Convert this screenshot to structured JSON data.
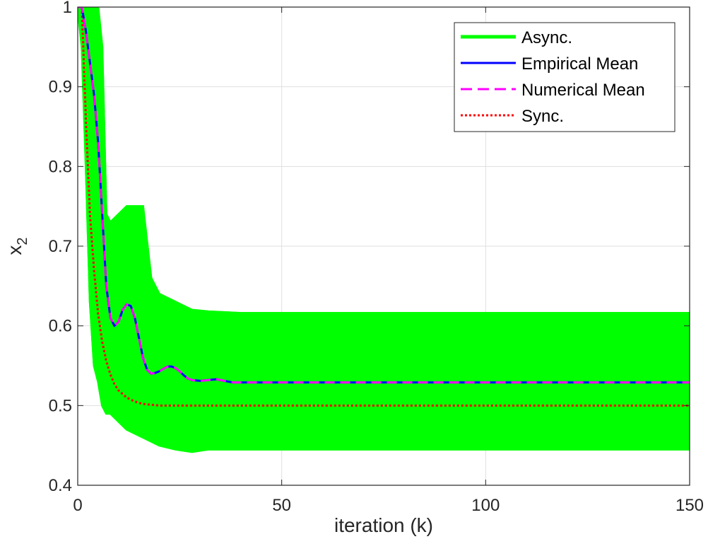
{
  "chart_data": {
    "type": "line",
    "xlabel": "iteration (k)",
    "ylabel": "x",
    "ylabel_subscript": "2",
    "xlim": [
      0,
      150
    ],
    "ylim": [
      0.4,
      1.0
    ],
    "xticks": [
      "0",
      "50",
      "100",
      "150"
    ],
    "yticks": [
      "0.4",
      "0.5",
      "0.6",
      "0.7",
      "0.8",
      "0.9",
      "1"
    ],
    "grid": true,
    "legend_position": "top-right",
    "legend": [
      {
        "label": "Async.",
        "color": "#00ff00",
        "style": "solid"
      },
      {
        "label": "Empirical Mean",
        "color": "#0000ff",
        "style": "solid"
      },
      {
        "label": "Numerical Mean",
        "color": "#ff00ff",
        "style": "dashed"
      },
      {
        "label": "Sync.",
        "color": "#ff0000",
        "style": "dotted"
      }
    ],
    "async_band": {
      "x": [
        0,
        1,
        2,
        3,
        4,
        5,
        6,
        7,
        8,
        10,
        12,
        14,
        16,
        18,
        20,
        24,
        28,
        32,
        40,
        60,
        150
      ],
      "upper": [
        1.0,
        1.0,
        1.0,
        1.0,
        1.0,
        1.0,
        0.95,
        0.74,
        0.73,
        0.74,
        0.75,
        0.75,
        0.75,
        0.66,
        0.64,
        0.63,
        0.62,
        0.618,
        0.616,
        0.616,
        0.616
      ],
      "lower": [
        1.0,
        0.95,
        0.8,
        0.63,
        0.55,
        0.53,
        0.5,
        0.49,
        0.49,
        0.48,
        0.47,
        0.465,
        0.46,
        0.455,
        0.45,
        0.445,
        0.442,
        0.445,
        0.445,
        0.445,
        0.445
      ]
    },
    "series": [
      {
        "name": "Empirical Mean",
        "color": "#0000ff",
        "x": [
          0,
          1,
          2,
          3,
          4,
          5,
          6,
          7,
          8,
          9,
          10,
          11,
          12,
          13,
          14,
          15,
          16,
          17,
          18,
          19,
          20,
          21,
          22,
          23,
          24,
          25,
          26,
          27,
          28,
          30,
          32,
          34,
          36,
          38,
          40,
          50,
          150
        ],
        "y": [
          1.0,
          1.0,
          0.97,
          0.93,
          0.89,
          0.83,
          0.74,
          0.65,
          0.61,
          0.6,
          0.605,
          0.62,
          0.627,
          0.625,
          0.61,
          0.585,
          0.56,
          0.545,
          0.54,
          0.541,
          0.543,
          0.546,
          0.549,
          0.549,
          0.547,
          0.543,
          0.538,
          0.534,
          0.532,
          0.531,
          0.532,
          0.533,
          0.531,
          0.529,
          0.529,
          0.529,
          0.529
        ]
      },
      {
        "name": "Numerical Mean",
        "color": "#ff00ff",
        "x": [
          0,
          1,
          2,
          3,
          4,
          5,
          6,
          7,
          8,
          9,
          10,
          11,
          12,
          13,
          14,
          15,
          16,
          17,
          18,
          19,
          20,
          21,
          22,
          23,
          24,
          25,
          26,
          27,
          28,
          30,
          32,
          34,
          36,
          38,
          40,
          50,
          150
        ],
        "y": [
          1.0,
          1.0,
          0.97,
          0.93,
          0.89,
          0.83,
          0.74,
          0.65,
          0.61,
          0.6,
          0.605,
          0.62,
          0.627,
          0.625,
          0.61,
          0.585,
          0.56,
          0.545,
          0.54,
          0.541,
          0.543,
          0.546,
          0.549,
          0.549,
          0.547,
          0.543,
          0.538,
          0.534,
          0.532,
          0.531,
          0.532,
          0.533,
          0.531,
          0.529,
          0.529,
          0.529,
          0.529
        ]
      },
      {
        "name": "Sync.",
        "color": "#ff0000",
        "x": [
          0,
          1,
          2,
          3,
          4,
          5,
          6,
          7,
          8,
          9,
          10,
          12,
          14,
          16,
          18,
          20,
          25,
          30,
          40,
          150
        ],
        "y": [
          1.0,
          1.0,
          0.86,
          0.74,
          0.67,
          0.615,
          0.58,
          0.556,
          0.539,
          0.527,
          0.519,
          0.51,
          0.505,
          0.502,
          0.501,
          0.5,
          0.5,
          0.5,
          0.5,
          0.5
        ]
      }
    ]
  }
}
